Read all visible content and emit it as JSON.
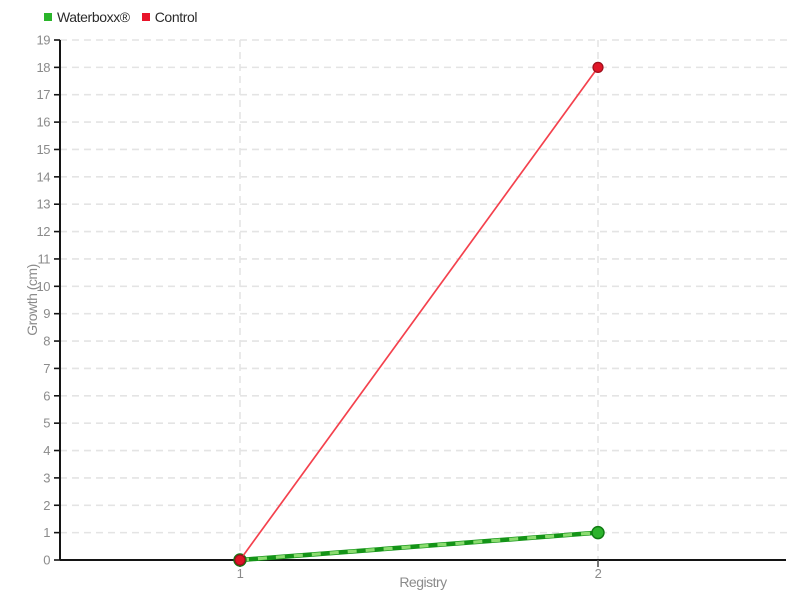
{
  "chart_data": {
    "type": "line",
    "title": "",
    "xlabel": "Registry",
    "ylabel": "Growth (cm)",
    "x": [
      1,
      2
    ],
    "x_tick_labels": [
      "1",
      "2"
    ],
    "y_ticks": [
      0,
      1,
      2,
      3,
      4,
      5,
      6,
      7,
      8,
      9,
      10,
      11,
      12,
      13,
      14,
      15,
      16,
      17,
      18,
      19
    ],
    "ylim": [
      0,
      19
    ],
    "grid": "dashed",
    "legend_position": "top-left",
    "series": [
      {
        "name": "Waterboxx®",
        "values": [
          0,
          1
        ],
        "color": "#2ab52a",
        "line_color": "#149417",
        "dash_overlay_color": "#8bdc70",
        "marker": "circle",
        "marker_fill": "#2cb32c",
        "marker_stroke": "#0f7a12",
        "marker_radius": 6
      },
      {
        "name": "Control",
        "values": [
          0,
          18
        ],
        "color": "#e8142a",
        "line_color": "#f4414d",
        "marker": "circle",
        "marker_fill": "#e01527",
        "marker_stroke": "#9e0f1c",
        "marker_radius": 5
      }
    ],
    "style": {
      "background": "#ffffff",
      "axis_color": "#141414",
      "grid_color": "#e4e4e4",
      "tick_label_color": "#8b8b8b",
      "axis_label_color": "#8b8b8b",
      "legend_text_color": "#2b2b2b"
    }
  }
}
